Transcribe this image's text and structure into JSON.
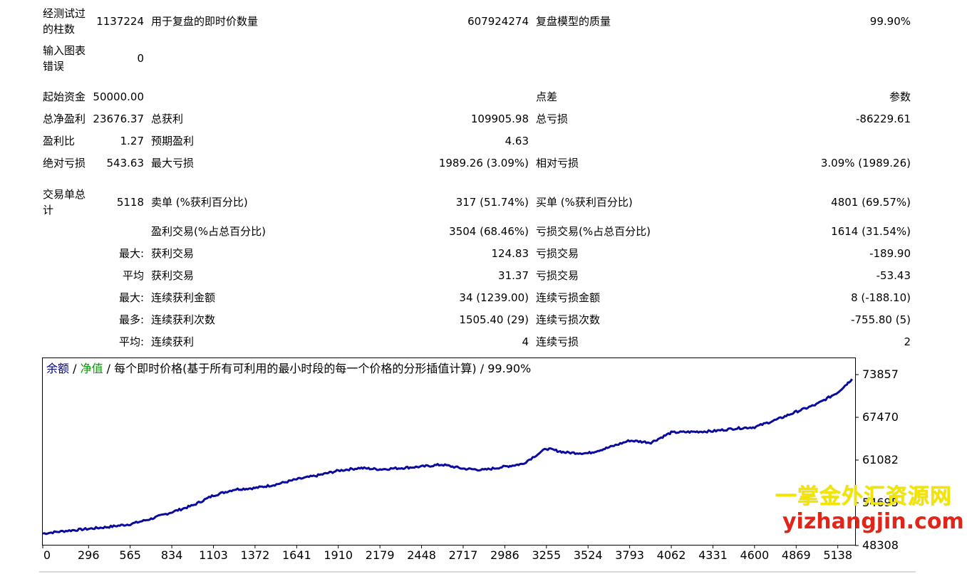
{
  "report": {
    "bars_tested_label": "经测试过的柱数",
    "bars_tested_value": "1137224",
    "ticks_label": "用于复盘的即时价数量",
    "ticks_value": "607924274",
    "quality_label": "复盘模型的质量",
    "quality_value": "99.90%",
    "mismatch_label": "输入图表错误",
    "mismatch_value": "0",
    "deposit_label": "起始资金",
    "deposit_value": "50000.00",
    "spread_label": "点差",
    "spread_value": "参数",
    "net_profit_label": "总净盈利",
    "net_profit_value": "23676.37",
    "gross_profit_label": "总获利",
    "gross_profit_value": "109905.98",
    "gross_loss_label": "总亏损",
    "gross_loss_value": "-86229.61",
    "profit_factor_label": "盈利比",
    "profit_factor_value": "1.27",
    "expected_payoff_label": "预期盈利",
    "expected_payoff_value": "4.63",
    "abs_dd_label": "绝对亏损",
    "abs_dd_value": "543.63",
    "max_dd_label": "最大亏损",
    "max_dd_value": "1989.26 (3.09%)",
    "rel_dd_label": "相对亏损",
    "rel_dd_value": "3.09% (1989.26)",
    "total_trades_label": "交易单总计",
    "total_trades_value": "5118",
    "short_label": "卖单 (%获利百分比)",
    "short_value": "317 (51.74%)",
    "long_label": "买单 (%获利百分比)",
    "long_value": "4801 (69.57%)",
    "profit_trades_label": "盈利交易(%占总百分比)",
    "profit_trades_value": "3504 (68.46%)",
    "loss_trades_label": "亏损交易(%占总百分比)",
    "loss_trades_value": "1614 (31.54%)",
    "largest_label": "最大:",
    "largest_profit_label": "获利交易",
    "largest_profit_value": "124.83",
    "largest_loss_label": "亏损交易",
    "largest_loss_value": "-189.90",
    "average_label": "平均",
    "average_profit_label": "获利交易",
    "average_profit_value": "31.37",
    "average_loss_label": "亏损交易",
    "average_loss_value": "-53.43",
    "max_consec_label": "最大:",
    "max_consec_wins_label": "连续获利金额",
    "max_consec_wins_value": "34 (1239.00)",
    "max_consec_losses_label": "连续亏损金额",
    "max_consec_losses_value": "8 (-188.10)",
    "most_consec_label": "最多:",
    "most_consec_profit_label": "连续获利次数",
    "most_consec_profit_value": "1505.40 (29)",
    "most_consec_loss_label": "连续亏损次数",
    "most_consec_loss_value": "-755.80 (5)",
    "avg_consec_label": "平均:",
    "avg_consec_wins_label": "连续获利",
    "avg_consec_wins_value": "4",
    "avg_consec_losses_label": "连续亏损",
    "avg_consec_losses_value": "2"
  },
  "chart_header": {
    "balance": "余额",
    "sep1": " / ",
    "equity": "净值",
    "sep2": " / ",
    "model": "每个即时价格(基于所有可利用的最小时段的每一个价格的分形插值计算) / 99.90%"
  },
  "colors": {
    "balance_line": "#0a0aa0",
    "balance_label": "#00008b",
    "equity_label": "#00a000"
  },
  "watermark": {
    "line1": "一掌金外汇资源网",
    "line2": "yizhangjin.com"
  },
  "chart_data": {
    "type": "line",
    "x_ticks": [
      "0",
      "296",
      "565",
      "834",
      "1103",
      "1372",
      "1641",
      "1910",
      "2179",
      "2448",
      "2717",
      "2986",
      "3255",
      "3524",
      "3793",
      "4062",
      "4331",
      "4600",
      "4869",
      "5138"
    ],
    "y_ticks": [
      "73857",
      "67470",
      "61082",
      "54695",
      "48308"
    ],
    "xlim": [
      0,
      5250
    ],
    "ylim": [
      48308,
      76300
    ],
    "grid": false,
    "series": [
      {
        "x": [
          0,
          150,
          296,
          430,
          565,
          700,
          834,
          970,
          1103,
          1240,
          1372,
          1500,
          1641,
          1780,
          1910,
          2050,
          2179,
          2320,
          2448,
          2580,
          2717,
          2850,
          2986,
          3100,
          3255,
          3380,
          3524,
          3650,
          3793,
          3930,
          4062,
          4200,
          4331,
          4470,
          4600,
          4740,
          4869,
          5000,
          5138,
          5230
        ],
        "y": [
          50100,
          50500,
          50800,
          51100,
          51500,
          52300,
          53300,
          54300,
          55800,
          56700,
          56900,
          57400,
          58200,
          58800,
          59500,
          59900,
          59700,
          59900,
          60100,
          60400,
          59800,
          59600,
          60100,
          60500,
          62800,
          62200,
          62100,
          62900,
          64000,
          63700,
          65200,
          65300,
          65400,
          65800,
          66000,
          67100,
          68300,
          69400,
          71200,
          73200
        ]
      }
    ]
  }
}
